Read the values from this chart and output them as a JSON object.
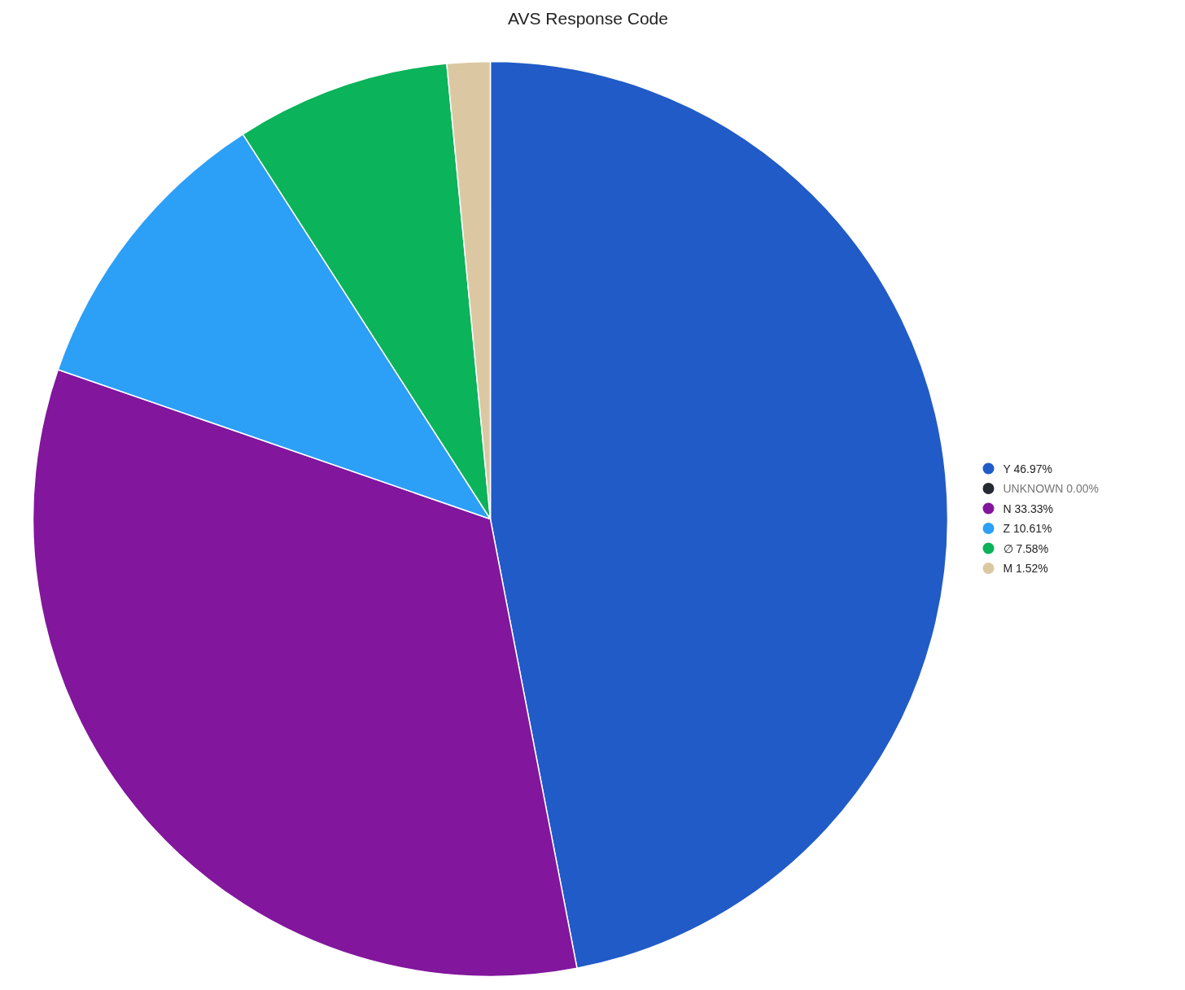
{
  "chart_data": {
    "type": "pie",
    "title": "AVS Response Code",
    "categories": [
      "Y",
      "UNKNOWN",
      "N",
      "Z",
      "∅",
      "M"
    ],
    "values": [
      46.97,
      0.0,
      33.33,
      10.61,
      7.58,
      1.52
    ],
    "value_labels": [
      "46.97%",
      "0.00%",
      "33.33%",
      "10.61%",
      "7.58%",
      "1.52%"
    ],
    "colors": [
      "#215bc7",
      "#252a33",
      "#82169c",
      "#2c9ff7",
      "#0bb35a",
      "#dbc8a2"
    ],
    "legend": "right"
  }
}
